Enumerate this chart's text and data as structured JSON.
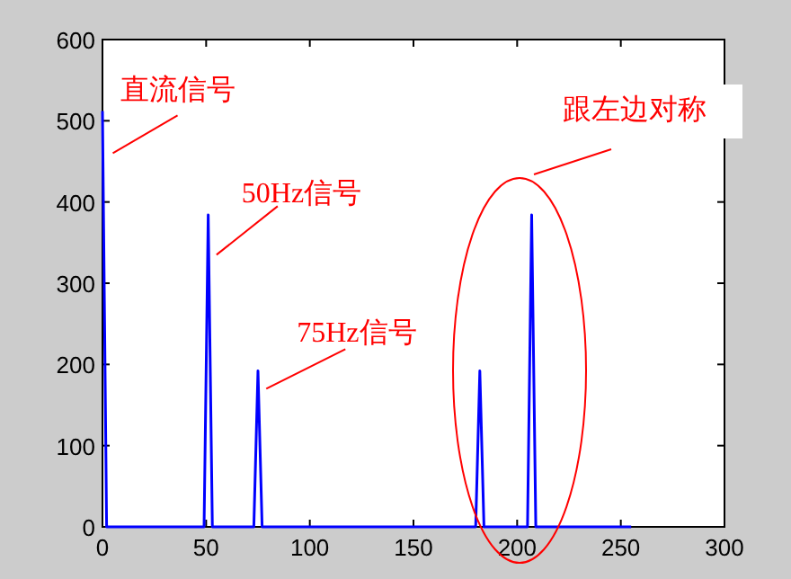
{
  "chart_data": {
    "type": "line",
    "x": [
      0,
      1,
      2,
      49,
      50,
      51,
      52,
      53,
      73,
      74,
      75,
      76,
      77,
      180,
      181,
      182,
      183,
      184,
      205,
      206,
      207,
      208,
      209,
      255
    ],
    "series": [
      {
        "color": "#0000ff",
        "values": [
          512,
          256,
          0,
          0,
          192,
          384,
          192,
          0,
          0,
          96,
          192,
          96,
          0,
          0,
          96,
          192,
          96,
          0,
          0,
          192,
          384,
          192,
          0,
          0
        ]
      }
    ],
    "xlim": [
      0,
      300
    ],
    "xticks": [
      0,
      50,
      100,
      150,
      200,
      250,
      300
    ],
    "ylim": [
      0,
      600
    ],
    "yticks": [
      0,
      100,
      200,
      300,
      400,
      500,
      600
    ],
    "grid": false,
    "marker": "none",
    "line_style": "solid",
    "annotations": [
      {
        "text": "直流信号",
        "x": 5,
        "y": 460
      },
      {
        "text": "50Hz信号",
        "x": 55,
        "y": 335
      },
      {
        "text": "75Hz信号",
        "x": 79,
        "y": 170
      },
      "跟左边对称"
    ]
  }
}
